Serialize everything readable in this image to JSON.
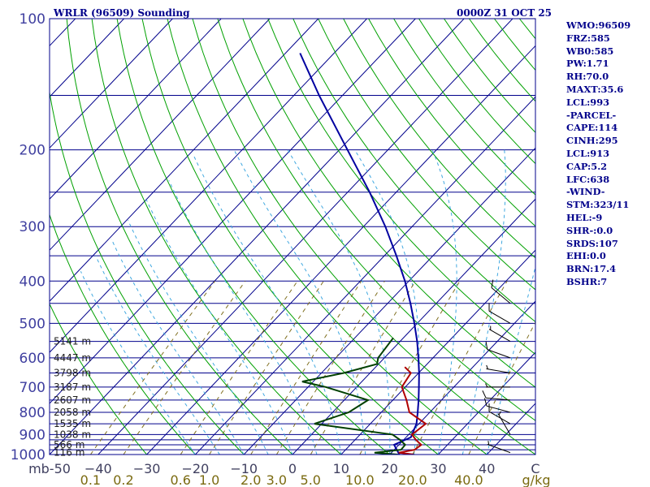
{
  "header": {
    "title_left": "WRLR (96509) Sounding",
    "title_right": "0000Z 31 OCT 25"
  },
  "sidebar": {
    "lines": [
      "WMO:96509",
      "FRZ:585",
      "WB0:585",
      "PW:1.71",
      "RH:70.0",
      "MAXT:35.6",
      "LCL:993",
      "-PARCEL-",
      "CAPE:114",
      "CINH:295",
      "LCL:913",
      "CAP:5.2",
      "LFC:638",
      "-WIND-",
      "STM:323/11",
      "HEL:-9",
      "SHR-:0.0",
      "SRDS:107",
      "EHI:0.0",
      "BRN:17.4",
      "BSHR:7"
    ]
  },
  "chart_data": {
    "type": "skew-t",
    "pressure_unit": "mb",
    "temperature_unit": "°C",
    "mixing_ratio_unit": "g/kg",
    "p_range": [
      1000,
      100
    ],
    "t_range": [
      -50,
      50
    ],
    "pressure_levels": [
      1000,
      975,
      950,
      925,
      900,
      850,
      800,
      750,
      700,
      650,
      600,
      550,
      500,
      450,
      400,
      350,
      300,
      250,
      200,
      150,
      100
    ],
    "pressure_labels": [
      100,
      200,
      300,
      400,
      500,
      600,
      700,
      800,
      900,
      1000
    ],
    "temperature_ticks": [
      -50,
      -40,
      -30,
      -20,
      -10,
      0,
      10,
      20,
      30,
      40,
      50
    ],
    "temperature_tick_labels": [
      "mb-50",
      "−40",
      "−30",
      "−20",
      "−10",
      "0",
      "10",
      "20",
      "30",
      "40",
      "C"
    ],
    "mixing_ratio_ticks": [
      0.1,
      0.2,
      0.6,
      1.0,
      2.0,
      3.0,
      5.0,
      10.0,
      20.0,
      40.0
    ],
    "mixing_ratio_tick_labels": [
      "0.1",
      "0.2",
      "0.6",
      "1.0",
      "2.0",
      "3.0",
      "5.0",
      "10.0",
      "20.0",
      "40.0",
      "g/kg"
    ],
    "height_labels": [
      {
        "p": 990,
        "label": "116 m"
      },
      {
        "p": 950,
        "label": "566 m"
      },
      {
        "p": 900,
        "label": "1038 m"
      },
      {
        "p": 850,
        "label": "1535 m"
      },
      {
        "p": 800,
        "label": "2058 m"
      },
      {
        "p": 750,
        "label": "2607 m"
      },
      {
        "p": 700,
        "label": "3187 m"
      },
      {
        "p": 650,
        "label": "3798 m"
      },
      {
        "p": 600,
        "label": "4447 m"
      },
      {
        "p": 550,
        "label": "5141 m"
      }
    ],
    "series": [
      {
        "kind": "parcel",
        "color": "#0000a0",
        "points": [
          {
            "p": 1000,
            "t": 22
          },
          {
            "p": 950,
            "t": 19
          },
          {
            "p": 913,
            "t": 21
          },
          {
            "p": 850,
            "t": 19.5
          },
          {
            "p": 800,
            "t": 17.5
          },
          {
            "p": 750,
            "t": 15.3
          },
          {
            "p": 700,
            "t": 12.8
          },
          {
            "p": 650,
            "t": 10.1
          },
          {
            "p": 600,
            "t": 7
          },
          {
            "p": 550,
            "t": 3.5
          },
          {
            "p": 500,
            "t": -0.6
          },
          {
            "p": 450,
            "t": -5.3
          },
          {
            "p": 400,
            "t": -10.8
          },
          {
            "p": 350,
            "t": -17.5
          },
          {
            "p": 300,
            "t": -25.5
          },
          {
            "p": 250,
            "t": -35.5
          },
          {
            "p": 200,
            "t": -48.3
          },
          {
            "p": 150,
            "t": -64.8
          },
          {
            "p": 120,
            "t": -77
          }
        ]
      },
      {
        "kind": "temperature",
        "color": "#b00000",
        "points": [
          {
            "p": 1000,
            "t": 25
          },
          {
            "p": 990,
            "t": 21.5
          },
          {
            "p": 975,
            "t": 24.2
          },
          {
            "p": 950,
            "t": 24.6
          },
          {
            "p": 925,
            "t": 22.5
          },
          {
            "p": 900,
            "t": 20.7
          },
          {
            "p": 850,
            "t": 21.4
          },
          {
            "p": 800,
            "t": 15.8
          },
          {
            "p": 750,
            "t": 12.8
          },
          {
            "p": 700,
            "t": 9.3
          },
          {
            "p": 650,
            "t": 8.4
          },
          {
            "p": 630,
            "t": 6
          }
        ]
      },
      {
        "kind": "dewpoint",
        "color": "#004000",
        "points": [
          {
            "p": 1000,
            "t": 21.7
          },
          {
            "p": 990,
            "t": 16.5
          },
          {
            "p": 975,
            "t": 21.4
          },
          {
            "p": 950,
            "t": 21.3
          },
          {
            "p": 925,
            "t": 19.2
          },
          {
            "p": 900,
            "t": 16.7
          },
          {
            "p": 850,
            "t": -1.5
          },
          {
            "p": 800,
            "t": 3.3
          },
          {
            "p": 750,
            "t": 4.9
          },
          {
            "p": 700,
            "t": -6.4
          },
          {
            "p": 680,
            "t": -12.3
          },
          {
            "p": 650,
            "t": -5.4
          },
          {
            "p": 620,
            "t": -0.3
          },
          {
            "p": 600,
            "t": -1.3
          },
          {
            "p": 540,
            "t": -2.1
          }
        ]
      }
    ],
    "wind_barbs": [
      {
        "p": 990,
        "dir": 290,
        "kt": 5
      },
      {
        "p": 900,
        "dir": 330,
        "kt": 5
      },
      {
        "p": 850,
        "dir": 300,
        "kt": 10
      },
      {
        "p": 800,
        "dir": 285,
        "kt": 10
      },
      {
        "p": 750,
        "dir": 275,
        "kt": 10
      },
      {
        "p": 700,
        "dir": 270,
        "kt": 5
      },
      {
        "p": 650,
        "dir": 280,
        "kt": 5
      },
      {
        "p": 600,
        "dir": 290,
        "kt": 10
      },
      {
        "p": 550,
        "dir": 300,
        "kt": 5
      },
      {
        "p": 500,
        "dir": 300,
        "kt": 10
      },
      {
        "p": 450,
        "dir": 310,
        "kt": 10
      }
    ],
    "colors": {
      "background": "#ffffff",
      "isobars": "#00008b",
      "isotherms": "#00008b",
      "dry_adiabats": "#00a000",
      "moist_adiabats": "#40a8e0",
      "mixing_ratio": "#807020",
      "grid_frame": "#00008b",
      "title_text": "#00008b",
      "sidebar_text": "#00008b",
      "wind_barbs": "#000000"
    }
  }
}
